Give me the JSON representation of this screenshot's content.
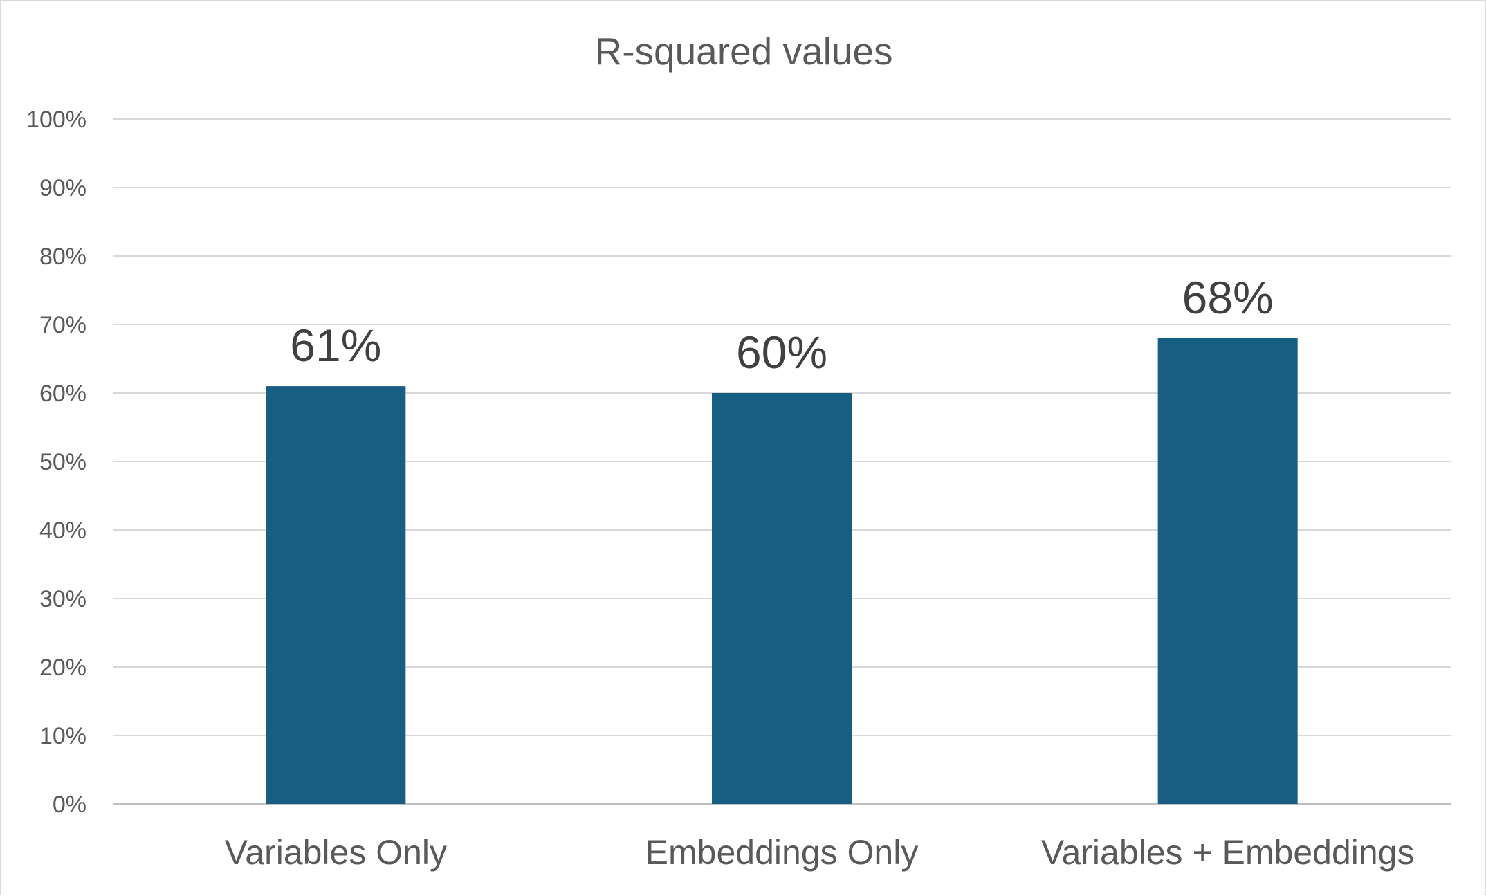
{
  "chart_data": {
    "type": "bar",
    "title": "R-squared values",
    "xlabel": "",
    "ylabel": "",
    "categories": [
      "Variables Only",
      "Embeddings Only",
      "Variables + Embeddings"
    ],
    "values": [
      61,
      60,
      68
    ],
    "data_labels": [
      "61%",
      "60%",
      "68%"
    ],
    "ylim": [
      0,
      100
    ],
    "y_ticks": [
      0,
      10,
      20,
      30,
      40,
      50,
      60,
      70,
      80,
      90,
      100
    ],
    "y_tick_labels": [
      "0%",
      "10%",
      "20%",
      "30%",
      "40%",
      "50%",
      "60%",
      "70%",
      "80%",
      "90%",
      "100%"
    ],
    "grid": true,
    "legend": "none",
    "bar_color": "#175F82"
  }
}
